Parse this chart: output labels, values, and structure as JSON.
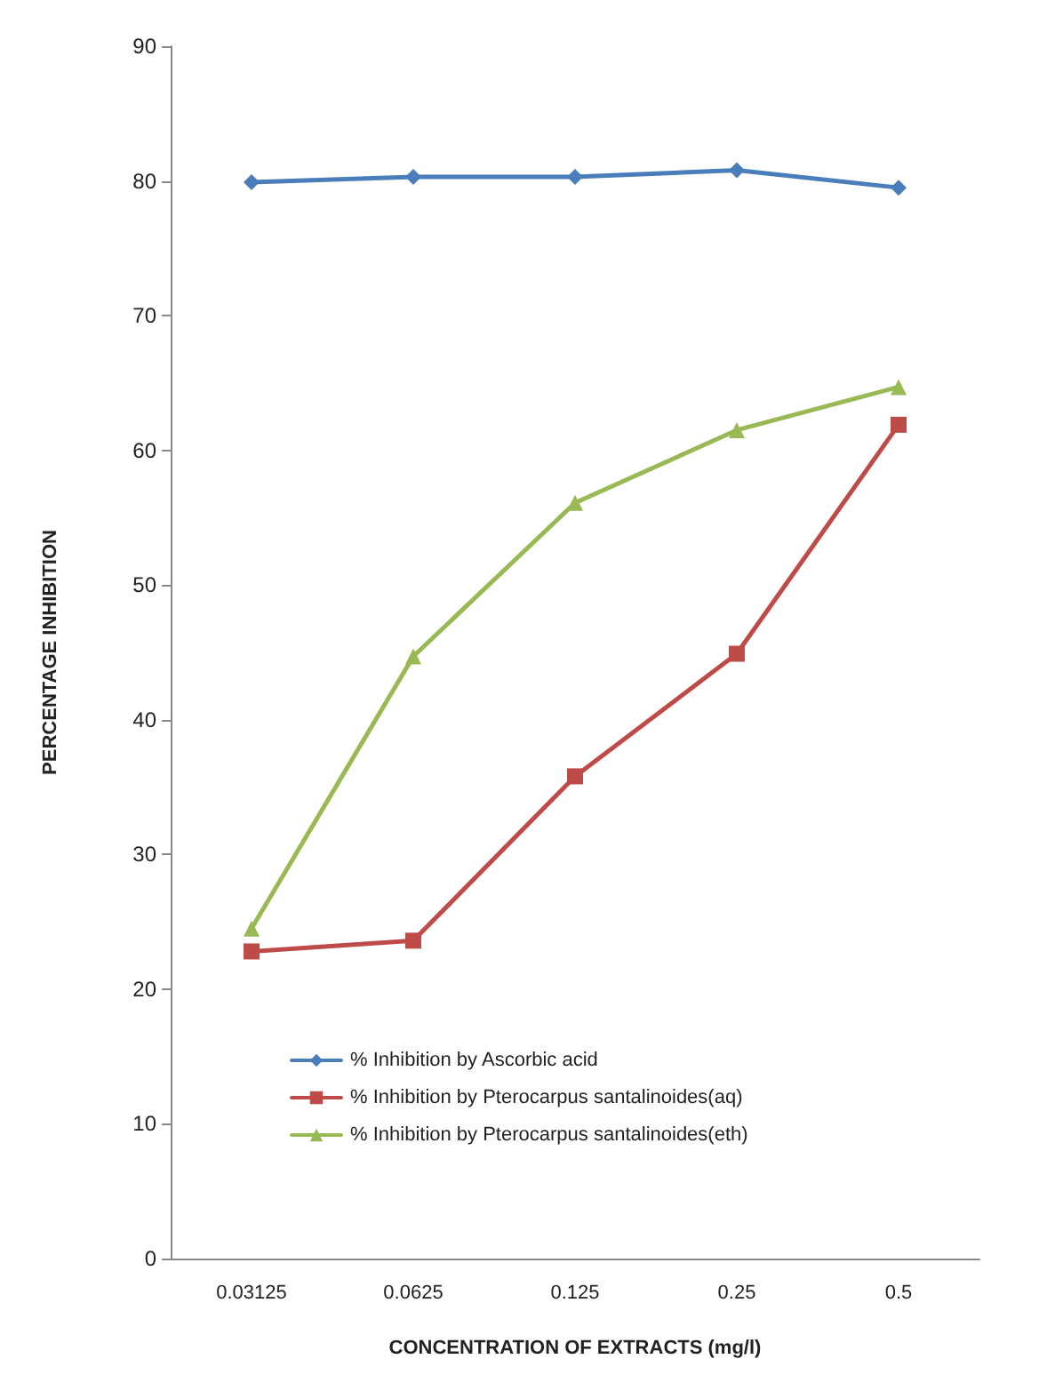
{
  "chart_data": {
    "type": "line",
    "xlabel": "CONCENTRATION OF EXTRACTS (mg/l)",
    "ylabel": "PERCENTAGE INHIBITION",
    "categories": [
      "0.03125",
      "0.0625",
      "0.125",
      "0.25",
      "0.5"
    ],
    "ylim": [
      0,
      90
    ],
    "yticks": [
      0,
      10,
      20,
      30,
      40,
      50,
      60,
      70,
      80,
      90
    ],
    "grid": false,
    "legend": "bottom left",
    "series": [
      {
        "name": "% Inhibition by Ascorbic acid",
        "color": "#4a7ebb",
        "marker": "diamond",
        "values": [
          79.9,
          80.3,
          80.3,
          80.8,
          79.5
        ]
      },
      {
        "name": "% Inhibition by Pterocarpus santalinoides(aq)",
        "color": "#be4b48",
        "marker": "square",
        "values": [
          22.8,
          23.6,
          35.8,
          44.9,
          61.9
        ]
      },
      {
        "name": "% Inhibition by Pterocarpus santalinoides(eth)",
        "color": "#98b954",
        "marker": "triangle",
        "values": [
          24.5,
          44.7,
          56.1,
          61.5,
          64.7
        ]
      }
    ]
  }
}
